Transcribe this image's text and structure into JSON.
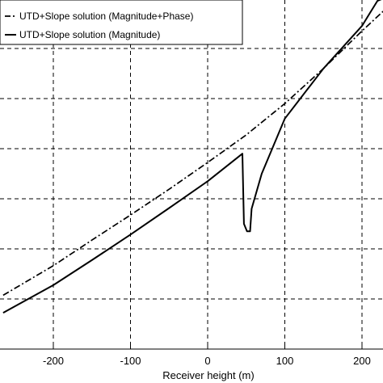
{
  "chart_data": {
    "type": "line",
    "xlabel": "Receiver height (m)",
    "ylabel": "",
    "title": "",
    "xlim": [
      -265,
      228
    ],
    "grid": true,
    "grid_style": "dashed",
    "legend_position": "top-left",
    "x_ticks": [
      {
        "value": -200,
        "label": "-200"
      },
      {
        "value": -100,
        "label": "-100"
      },
      {
        "value": 0,
        "label": "0"
      },
      {
        "value": 100,
        "label": "100"
      },
      {
        "value": 200,
        "label": "200"
      }
    ],
    "series": [
      {
        "name": "UTD+Slope solution (Magnitude+Phase)",
        "style": "dash-dot",
        "color": "#000000",
        "points": [
          [
            -265,
            0.215
          ],
          [
            -200,
            0.333
          ],
          [
            -150,
            0.435
          ],
          [
            -100,
            0.535
          ],
          [
            -50,
            0.638
          ],
          [
            0,
            0.745
          ],
          [
            50,
            0.855
          ],
          [
            100,
            0.98
          ],
          [
            150,
            1.12
          ],
          [
            200,
            1.27
          ],
          [
            228,
            1.35
          ]
        ]
      },
      {
        "name": "UTD+Slope solution (Magnitude)",
        "style": "solid",
        "color": "#000000",
        "points": [
          [
            -265,
            0.145
          ],
          [
            -200,
            0.255
          ],
          [
            -150,
            0.355
          ],
          [
            -100,
            0.457
          ],
          [
            -50,
            0.563
          ],
          [
            0,
            0.67
          ],
          [
            45,
            0.78
          ],
          [
            47,
            0.5
          ],
          [
            51,
            0.47
          ],
          [
            55,
            0.47
          ],
          [
            57,
            0.56
          ],
          [
            70,
            0.7
          ],
          [
            100,
            0.92
          ],
          [
            150,
            1.12
          ],
          [
            200,
            1.29
          ],
          [
            210,
            1.34
          ],
          [
            220,
            1.39
          ],
          [
            228,
            1.4
          ]
        ]
      }
    ]
  }
}
